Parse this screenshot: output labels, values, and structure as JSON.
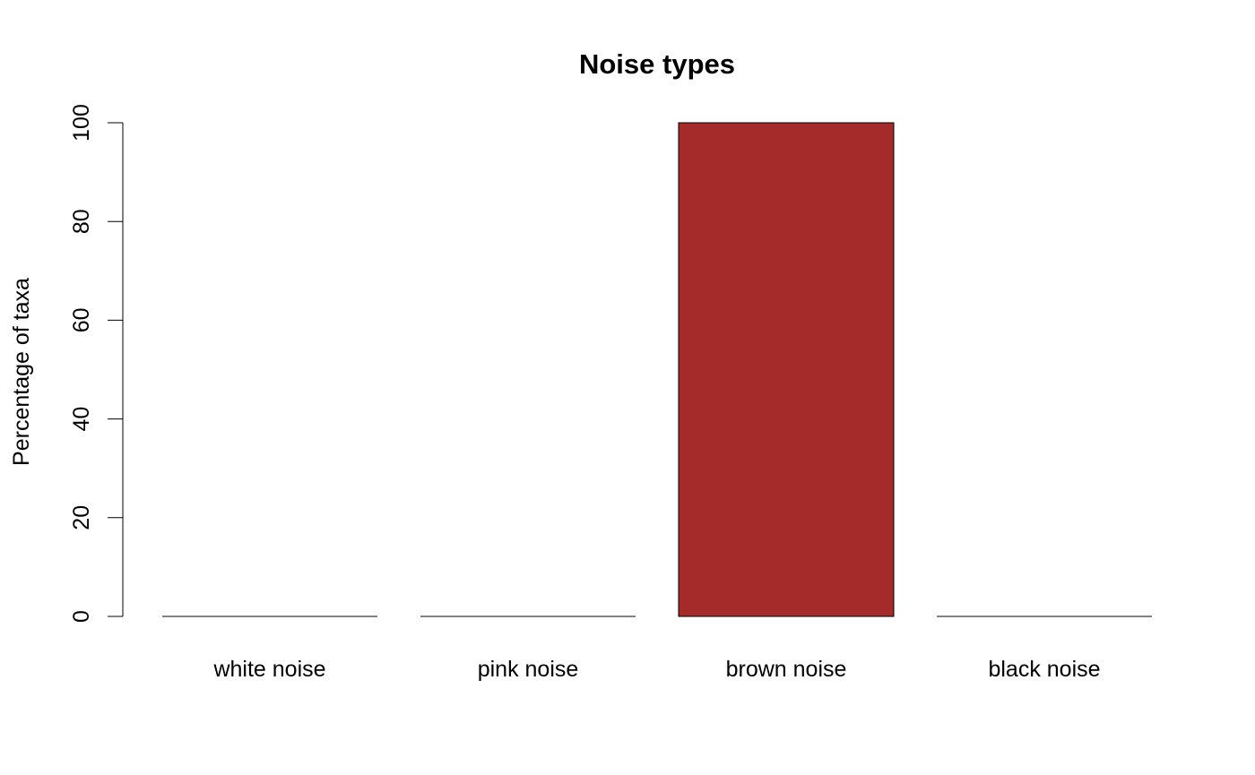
{
  "chart_data": {
    "type": "bar",
    "title": "Noise types",
    "xlabel": "",
    "ylabel": "Percentage of taxa",
    "categories": [
      "white noise",
      "pink noise",
      "brown noise",
      "black noise"
    ],
    "values": [
      0,
      0,
      100,
      0
    ],
    "ylim": [
      0,
      100
    ],
    "yticks": [
      0,
      20,
      40,
      60,
      80,
      100
    ],
    "bar_color": "#A52A2A",
    "bar_border_color": "#000000",
    "grid": false,
    "legend": "none"
  }
}
